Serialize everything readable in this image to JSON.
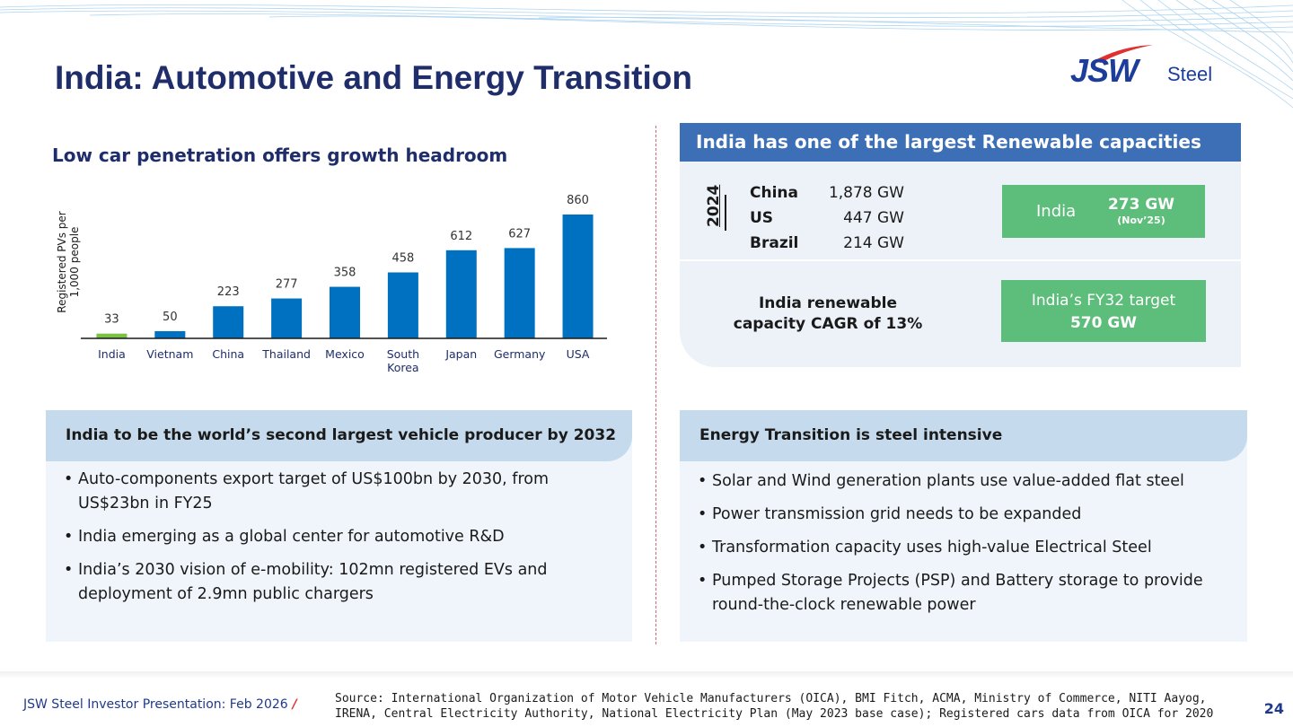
{
  "title": "India: Automotive and Energy Transition",
  "logo": {
    "brand": "JSW",
    "suffix": "Steel"
  },
  "chart_heading": "Low car penetration offers growth headroom",
  "chart_data": {
    "type": "bar",
    "title": "Low car penetration offers growth headroom",
    "ylabel": "Registered PVs per 1,000 people",
    "ylabel_lines": [
      "Registered PVs per",
      "1,000 people"
    ],
    "xlabel": "",
    "categories": [
      "India",
      "Vietnam",
      "China",
      "Thailand",
      "Mexico",
      "South Korea",
      "Japan",
      "Germany",
      "USA"
    ],
    "category_lines": [
      [
        "India"
      ],
      [
        "Vietnam"
      ],
      [
        "China"
      ],
      [
        "Thailand"
      ],
      [
        "Mexico"
      ],
      [
        "South",
        "Korea"
      ],
      [
        "Japan"
      ],
      [
        "Germany"
      ],
      [
        "USA"
      ]
    ],
    "values": [
      33,
      50,
      223,
      277,
      358,
      458,
      612,
      627,
      860
    ],
    "highlight": "India",
    "colors": {
      "default": "#0070c0",
      "highlight": "#7cc242"
    },
    "ylim": [
      0,
      900
    ],
    "grid": false,
    "data_labels": true
  },
  "renewable": {
    "header": "India has one of the largest Renewable capacities",
    "year": "2024",
    "countries": [
      {
        "name": "China",
        "value": "1,878 GW"
      },
      {
        "name": "US",
        "value": "447 GW"
      },
      {
        "name": "Brazil",
        "value": "214 GW"
      }
    ],
    "india_label": "India",
    "india_value": "273 GW",
    "india_date": "(Nov’25)",
    "cagr_line1": "India renewable",
    "cagr_line2": "capacity CAGR of 13%",
    "target_label": "India’s FY32 target",
    "target_value": "570 GW"
  },
  "vehicle_box": {
    "heading": "India to be the world’s second largest vehicle producer by 2032",
    "bullets": [
      "Auto-components export target of US$100bn by 2030, from US$23bn in FY25",
      "India emerging as a global center for automotive R&D",
      "India’s 2030 vision of e-mobility: 102mn registered EVs and deployment of 2.9mn public chargers"
    ]
  },
  "energy_box": {
    "heading": "Energy Transition is steel intensive",
    "bullets": [
      "Solar and Wind generation plants use value-added flat steel",
      "Power transmission grid needs to be expanded",
      "Transformation capacity uses high-value Electrical Steel",
      "Pumped Storage Projects (PSP) and Battery storage to provide round-the-clock renewable power"
    ]
  },
  "footer": {
    "presentation": "JSW Steel Investor Presentation: Feb 2026",
    "slash": "/",
    "source": "Source: International Organization of Motor Vehicle Manufacturers (OICA), BMI Fitch, ACMA, Ministry of Commerce, NITI Aayog, IRENA, Central Electricity Authority, National Electricity Plan (May 2023 base case); Registered cars data from OICA for 2020",
    "page": "24"
  }
}
